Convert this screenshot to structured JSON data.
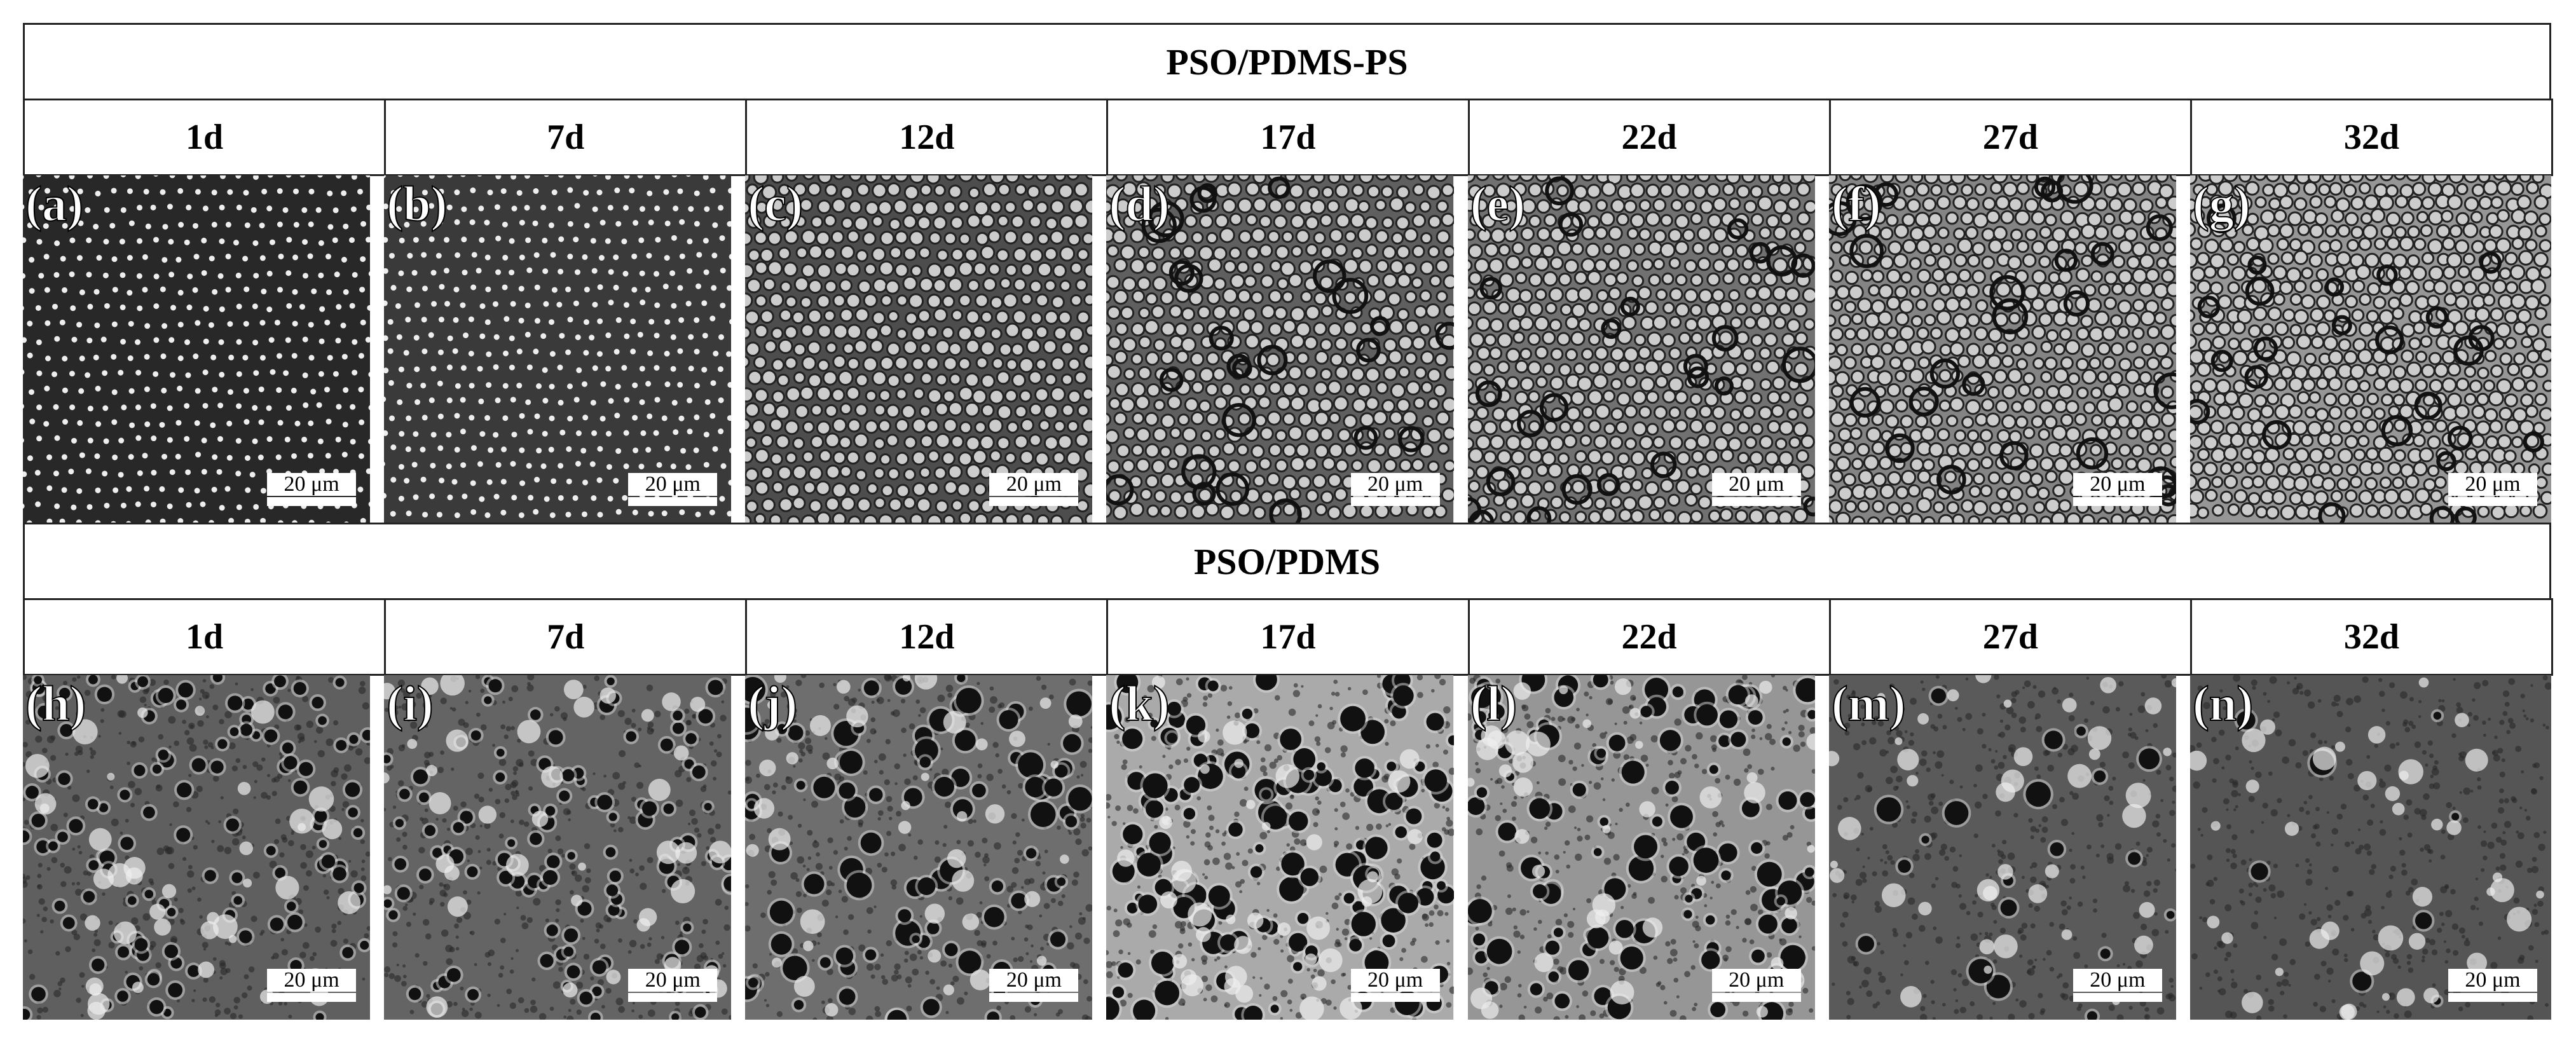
{
  "sections": [
    {
      "title": "PSO/PDMS-PS",
      "columns": [
        "1d",
        "7d",
        "12d",
        "17d",
        "22d",
        "27d",
        "32d"
      ],
      "panels": [
        {
          "label": "(a)",
          "scale": "20 μm"
        },
        {
          "label": "(b)",
          "scale": "20 μm"
        },
        {
          "label": "(c)",
          "scale": "20 μm"
        },
        {
          "label": "(d)",
          "scale": "20 μm"
        },
        {
          "label": "(e)",
          "scale": "20 μm"
        },
        {
          "label": "(f)",
          "scale": "20 μm"
        },
        {
          "label": "(g)",
          "scale": "20 μm"
        }
      ]
    },
    {
      "title": "PSO/PDMS",
      "columns": [
        "1d",
        "7d",
        "12d",
        "17d",
        "22d",
        "27d",
        "32d"
      ],
      "panels": [
        {
          "label": "(h)",
          "scale": "20 μm"
        },
        {
          "label": "(i)",
          "scale": "20 μm"
        },
        {
          "label": "(j)",
          "scale": "20 μm"
        },
        {
          "label": "(k)",
          "scale": "20 μm"
        },
        {
          "label": "(l)",
          "scale": "20 μm"
        },
        {
          "label": "(m)",
          "scale": "20 μm"
        },
        {
          "label": "(n)",
          "scale": "20 μm"
        }
      ]
    }
  ]
}
